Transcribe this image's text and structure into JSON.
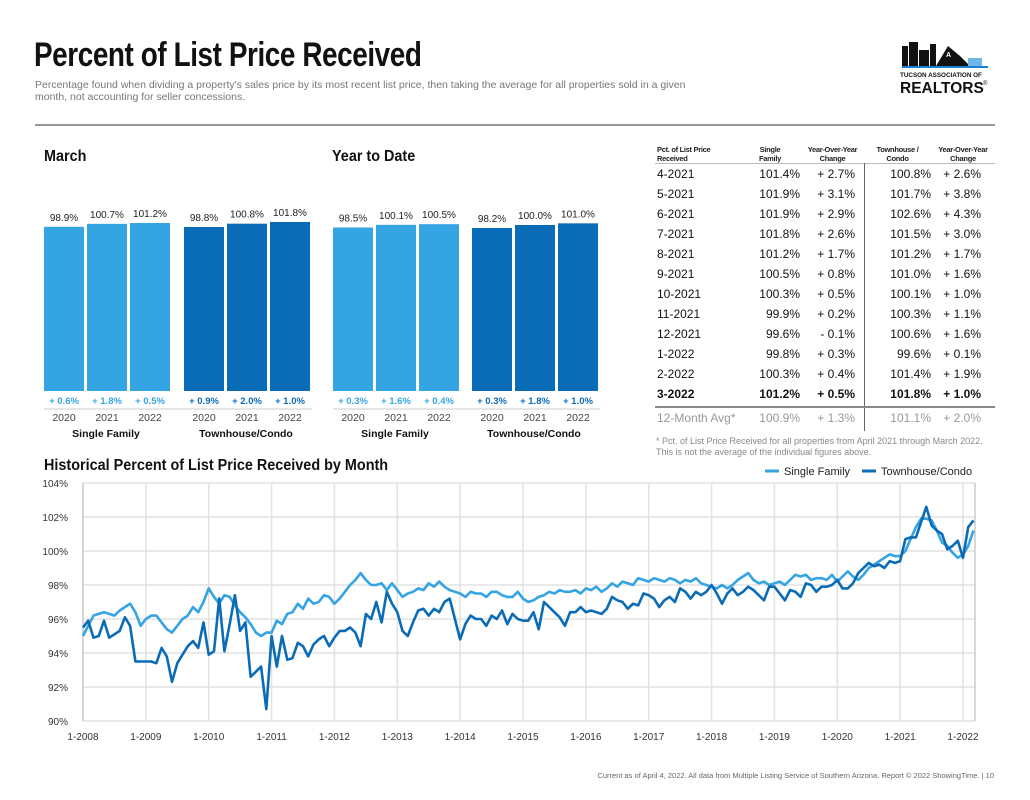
{
  "header": {
    "title": "Percent of List Price Received",
    "subtitle": "Percentage found when dividing a property's sales price by its most recent list price, then taking the average for all properties sold in a given month, not accounting for seller concessions.",
    "logo": {
      "line1": "TUCSON ASSOCIATION OF",
      "line2": "REALTORS",
      "mark": "®"
    }
  },
  "colors": {
    "single_family": "#35a4e2",
    "townhouse": "#0a6bb6"
  },
  "chart_data": [
    {
      "type": "bar",
      "title": "March",
      "groups": [
        {
          "name": "Single Family",
          "categories": [
            "2020",
            "2021",
            "2022"
          ],
          "values": [
            98.9,
            100.7,
            101.2
          ],
          "value_labels": [
            "98.9%",
            "100.7%",
            "101.2%"
          ],
          "changes": [
            "+ 0.6%",
            "+ 1.8%",
            "+ 0.5%"
          ]
        },
        {
          "name": "Townhouse/Condo",
          "categories": [
            "2020",
            "2021",
            "2022"
          ],
          "values": [
            98.8,
            100.8,
            101.8
          ],
          "value_labels": [
            "98.8%",
            "100.8%",
            "101.8%"
          ],
          "changes": [
            "+ 0.9%",
            "+ 2.0%",
            "+ 1.0%"
          ]
        }
      ]
    },
    {
      "type": "bar",
      "title": "Year to Date",
      "groups": [
        {
          "name": "Single Family",
          "categories": [
            "2020",
            "2021",
            "2022"
          ],
          "values": [
            98.5,
            100.1,
            100.5
          ],
          "value_labels": [
            "98.5%",
            "100.1%",
            "100.5%"
          ],
          "changes": [
            "+ 0.3%",
            "+ 1.6%",
            "+ 0.4%"
          ]
        },
        {
          "name": "Townhouse/Condo",
          "categories": [
            "2020",
            "2021",
            "2022"
          ],
          "values": [
            98.2,
            100.0,
            101.0
          ],
          "value_labels": [
            "98.2%",
            "100.0%",
            "101.0%"
          ],
          "changes": [
            "+ 0.3%",
            "+ 1.8%",
            "+ 1.0%"
          ]
        }
      ]
    },
    {
      "type": "table",
      "headers": [
        "Pct. of List Price Received",
        "Single Family",
        "Year-Over-Year Change",
        "Townhouse / Condo",
        "Year-Over-Year Change"
      ],
      "rows": [
        [
          "4-2021",
          "101.4%",
          "+ 2.7%",
          "100.8%",
          "+ 2.6%"
        ],
        [
          "5-2021",
          "101.9%",
          "+ 3.1%",
          "101.7%",
          "+ 3.8%"
        ],
        [
          "6-2021",
          "101.9%",
          "+ 2.9%",
          "102.6%",
          "+ 4.3%"
        ],
        [
          "7-2021",
          "101.8%",
          "+ 2.6%",
          "101.5%",
          "+ 3.0%"
        ],
        [
          "8-2021",
          "101.2%",
          "+ 1.7%",
          "101.2%",
          "+ 1.7%"
        ],
        [
          "9-2021",
          "100.5%",
          "+ 0.8%",
          "101.0%",
          "+ 1.6%"
        ],
        [
          "10-2021",
          "100.3%",
          "+ 0.5%",
          "100.1%",
          "+ 1.0%"
        ],
        [
          "11-2021",
          "99.9%",
          "+ 0.2%",
          "100.3%",
          "+ 1.1%"
        ],
        [
          "12-2021",
          "99.6%",
          "- 0.1%",
          "100.6%",
          "+ 1.6%"
        ],
        [
          "1-2022",
          "99.8%",
          "+ 0.3%",
          "99.6%",
          "+ 0.1%"
        ],
        [
          "2-2022",
          "100.3%",
          "+ 0.4%",
          "101.4%",
          "+ 1.9%"
        ],
        [
          "3-2022",
          "101.2%",
          "+ 0.5%",
          "101.8%",
          "+ 1.0%"
        ]
      ],
      "avg_row": [
        "12-Month Avg*",
        "100.9%",
        "+ 1.3%",
        "101.1%",
        "+ 2.0%"
      ],
      "footnote": "* Pct. of List Price Received for all properties from April 2021 through March 2022. This is not the average of the individual figures above."
    },
    {
      "type": "line",
      "title": "Historical Percent of List Price Received by Month",
      "x_start": "1-2008",
      "x_end": "3-2022",
      "x_interval": "monthly",
      "x_ticks": [
        "1-2008",
        "1-2009",
        "1-2010",
        "1-2011",
        "1-2012",
        "1-2013",
        "1-2014",
        "1-2015",
        "1-2016",
        "1-2017",
        "1-2018",
        "1-2019",
        "1-2020",
        "1-2021",
        "1-2022"
      ],
      "y_ticks": [
        "90%",
        "92%",
        "94%",
        "96%",
        "98%",
        "100%",
        "102%",
        "104%"
      ],
      "ylim": [
        90,
        104
      ],
      "grid": true,
      "legend": "top-right",
      "series": [
        {
          "name": "Single Family",
          "values": [
            95.0,
            95.6,
            96.2,
            96.3,
            96.4,
            96.3,
            96.2,
            96.5,
            96.7,
            96.9,
            96.4,
            95.6,
            96.0,
            96.2,
            96.2,
            95.8,
            95.4,
            95.2,
            95.6,
            96.0,
            96.2,
            96.7,
            96.4,
            97.0,
            97.8,
            97.3,
            96.9,
            97.4,
            97.3,
            96.8,
            96.4,
            96.1,
            95.7,
            95.2,
            95.0,
            95.2,
            95.2,
            95.9,
            95.7,
            96.3,
            96.4,
            96.9,
            96.6,
            97.2,
            96.9,
            97.0,
            97.4,
            97.3,
            96.9,
            97.2,
            97.6,
            98.0,
            98.3,
            98.7,
            98.3,
            98.0,
            98.0,
            98.1,
            97.7,
            98.1,
            97.7,
            97.3,
            97.5,
            97.6,
            97.8,
            97.7,
            98.1,
            97.9,
            98.2,
            97.9,
            97.7,
            97.6,
            97.5,
            97.3,
            97.6,
            97.5,
            97.5,
            97.3,
            97.6,
            97.6,
            97.4,
            97.3,
            97.3,
            97.6,
            97.2,
            97.0,
            97.1,
            97.3,
            97.4,
            97.6,
            97.5,
            97.7,
            97.6,
            97.6,
            97.7,
            97.5,
            97.8,
            97.7,
            97.9,
            97.6,
            97.8,
            98.1,
            97.9,
            98.2,
            98.1,
            98.0,
            98.4,
            98.3,
            98.2,
            98.4,
            98.3,
            98.2,
            98.4,
            98.3,
            98.1,
            98.3,
            98.2,
            98.4,
            98.1,
            98.0,
            97.9,
            97.8,
            98.0,
            97.8,
            98.0,
            98.3,
            98.5,
            98.7,
            98.3,
            98.1,
            98.2,
            98.0,
            98.1,
            98.2,
            98.0,
            98.3,
            98.6,
            98.5,
            98.6,
            98.3,
            98.4,
            98.4,
            98.3,
            98.6,
            98.2,
            98.5,
            98.8,
            98.5,
            98.3,
            98.6,
            99.0,
            99.2,
            99.4,
            99.6,
            99.8,
            99.7,
            99.7,
            100.0,
            100.7,
            101.4,
            101.9,
            101.9,
            101.8,
            101.2,
            100.5,
            100.3,
            99.9,
            99.6,
            99.8,
            100.3,
            101.2
          ]
        },
        {
          "name": "Townhouse/Condo",
          "values": [
            95.5,
            95.9,
            94.9,
            95.0,
            95.9,
            94.9,
            95.1,
            95.3,
            96.1,
            95.6,
            93.5,
            93.5,
            93.5,
            93.5,
            93.4,
            94.3,
            93.8,
            92.3,
            93.4,
            93.9,
            94.4,
            94.7,
            94.3,
            95.8,
            93.9,
            94.1,
            97.2,
            94.1,
            95.7,
            97.4,
            95.3,
            95.8,
            92.6,
            92.9,
            93.2,
            90.7,
            95.0,
            93.2,
            95.0,
            93.6,
            93.7,
            94.6,
            94.4,
            93.8,
            94.5,
            94.8,
            95.0,
            94.4,
            94.9,
            95.3,
            95.3,
            95.5,
            95.2,
            94.4,
            96.3,
            96.0,
            97.0,
            95.8,
            97.6,
            96.9,
            96.4,
            95.3,
            95.0,
            95.8,
            96.5,
            96.6,
            96.2,
            96.6,
            96.4,
            97.0,
            97.2,
            96.0,
            94.8,
            95.7,
            96.2,
            96.0,
            96.0,
            95.6,
            96.2,
            96.0,
            96.5,
            95.7,
            96.3,
            96.0,
            95.9,
            95.9,
            96.4,
            95.4,
            97.0,
            96.7,
            96.4,
            96.1,
            95.6,
            96.4,
            96.4,
            96.7,
            96.4,
            96.5,
            96.4,
            96.3,
            96.6,
            97.3,
            97.1,
            97.0,
            96.6,
            96.9,
            96.8,
            97.5,
            97.4,
            97.2,
            96.7,
            97.1,
            97.3,
            97.0,
            97.8,
            97.6,
            97.2,
            97.6,
            97.4,
            97.6,
            98.0,
            97.5,
            96.9,
            97.5,
            97.8,
            97.4,
            97.6,
            97.9,
            97.7,
            97.4,
            97.1,
            97.9,
            97.9,
            97.5,
            97.1,
            97.7,
            97.6,
            97.3,
            98.1,
            98.0,
            97.6,
            97.9,
            97.9,
            98.0,
            98.3,
            97.8,
            97.8,
            98.1,
            98.7,
            99.0,
            99.3,
            99.1,
            99.2,
            99.0,
            99.4,
            99.3,
            99.4,
            100.7,
            100.8,
            100.8,
            101.7,
            102.6,
            101.5,
            101.2,
            101.0,
            100.1,
            100.3,
            100.6,
            99.6,
            101.4,
            101.8
          ]
        }
      ]
    }
  ],
  "footer": "Current as of April 4, 2022. All data from Multiple Listing Service of Southern Arizona. Report © 2022 ShowingTime.  |  10"
}
